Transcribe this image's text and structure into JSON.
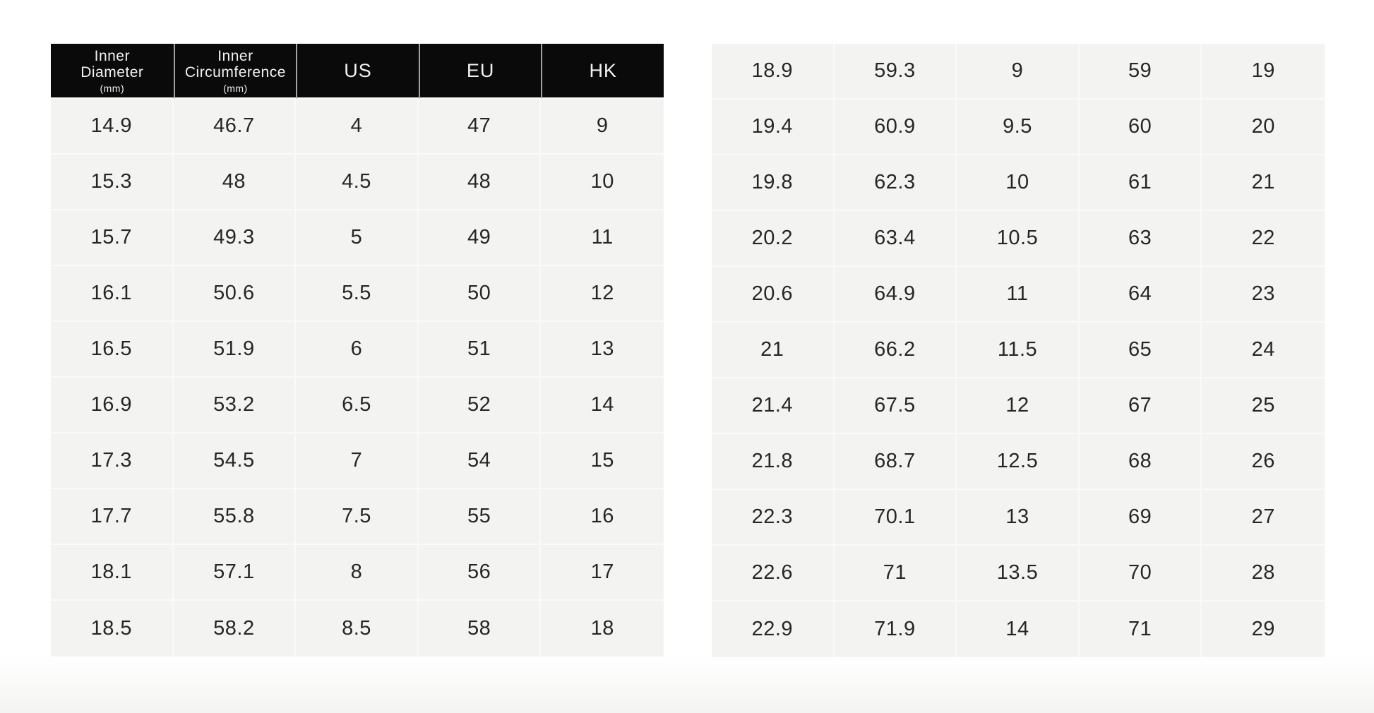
{
  "colors": {
    "header_bg": "#0a0a0a",
    "header_text": "#f2f2f2",
    "header_divider": "#a2a2a2",
    "cell_bg": "#f3f3f1",
    "grid_line": "#fafaf8",
    "data_text": "#262626",
    "page_bg": "#ffffff"
  },
  "left_table": {
    "header": {
      "col1": {
        "line1": "Inner",
        "line2": "Diameter",
        "unit": "(mm)"
      },
      "col2": {
        "line1": "Inner",
        "line2": "Circumference",
        "unit": "(mm)"
      },
      "col3": {
        "label": "US"
      },
      "col4": {
        "label": "EU"
      },
      "col5": {
        "label": "HK"
      }
    },
    "columns": [
      "Inner Diameter (mm)",
      "Inner Circumference (mm)",
      "US",
      "EU",
      "HK"
    ],
    "rows": [
      [
        "14.9",
        "46.7",
        "4",
        "47",
        "9"
      ],
      [
        "15.3",
        "48",
        "4.5",
        "48",
        "10"
      ],
      [
        "15.7",
        "49.3",
        "5",
        "49",
        "11"
      ],
      [
        "16.1",
        "50.6",
        "5.5",
        "50",
        "12"
      ],
      [
        "16.5",
        "51.9",
        "6",
        "51",
        "13"
      ],
      [
        "16.9",
        "53.2",
        "6.5",
        "52",
        "14"
      ],
      [
        "17.3",
        "54.5",
        "7",
        "54",
        "15"
      ],
      [
        "17.7",
        "55.8",
        "7.5",
        "55",
        "16"
      ],
      [
        "18.1",
        "57.1",
        "8",
        "56",
        "17"
      ],
      [
        "18.5",
        "58.2",
        "8.5",
        "58",
        "18"
      ]
    ]
  },
  "right_table": {
    "rows": [
      [
        "18.9",
        "59.3",
        "9",
        "59",
        "19"
      ],
      [
        "19.4",
        "60.9",
        "9.5",
        "60",
        "20"
      ],
      [
        "19.8",
        "62.3",
        "10",
        "61",
        "21"
      ],
      [
        "20.2",
        "63.4",
        "10.5",
        "63",
        "22"
      ],
      [
        "20.6",
        "64.9",
        "11",
        "64",
        "23"
      ],
      [
        "21",
        "66.2",
        "11.5",
        "65",
        "24"
      ],
      [
        "21.4",
        "67.5",
        "12",
        "67",
        "25"
      ],
      [
        "21.8",
        "68.7",
        "12.5",
        "68",
        "26"
      ],
      [
        "22.3",
        "70.1",
        "13",
        "69",
        "27"
      ],
      [
        "22.6",
        "71",
        "13.5",
        "70",
        "28"
      ],
      [
        "22.9",
        "71.9",
        "14",
        "71",
        "29"
      ]
    ]
  }
}
